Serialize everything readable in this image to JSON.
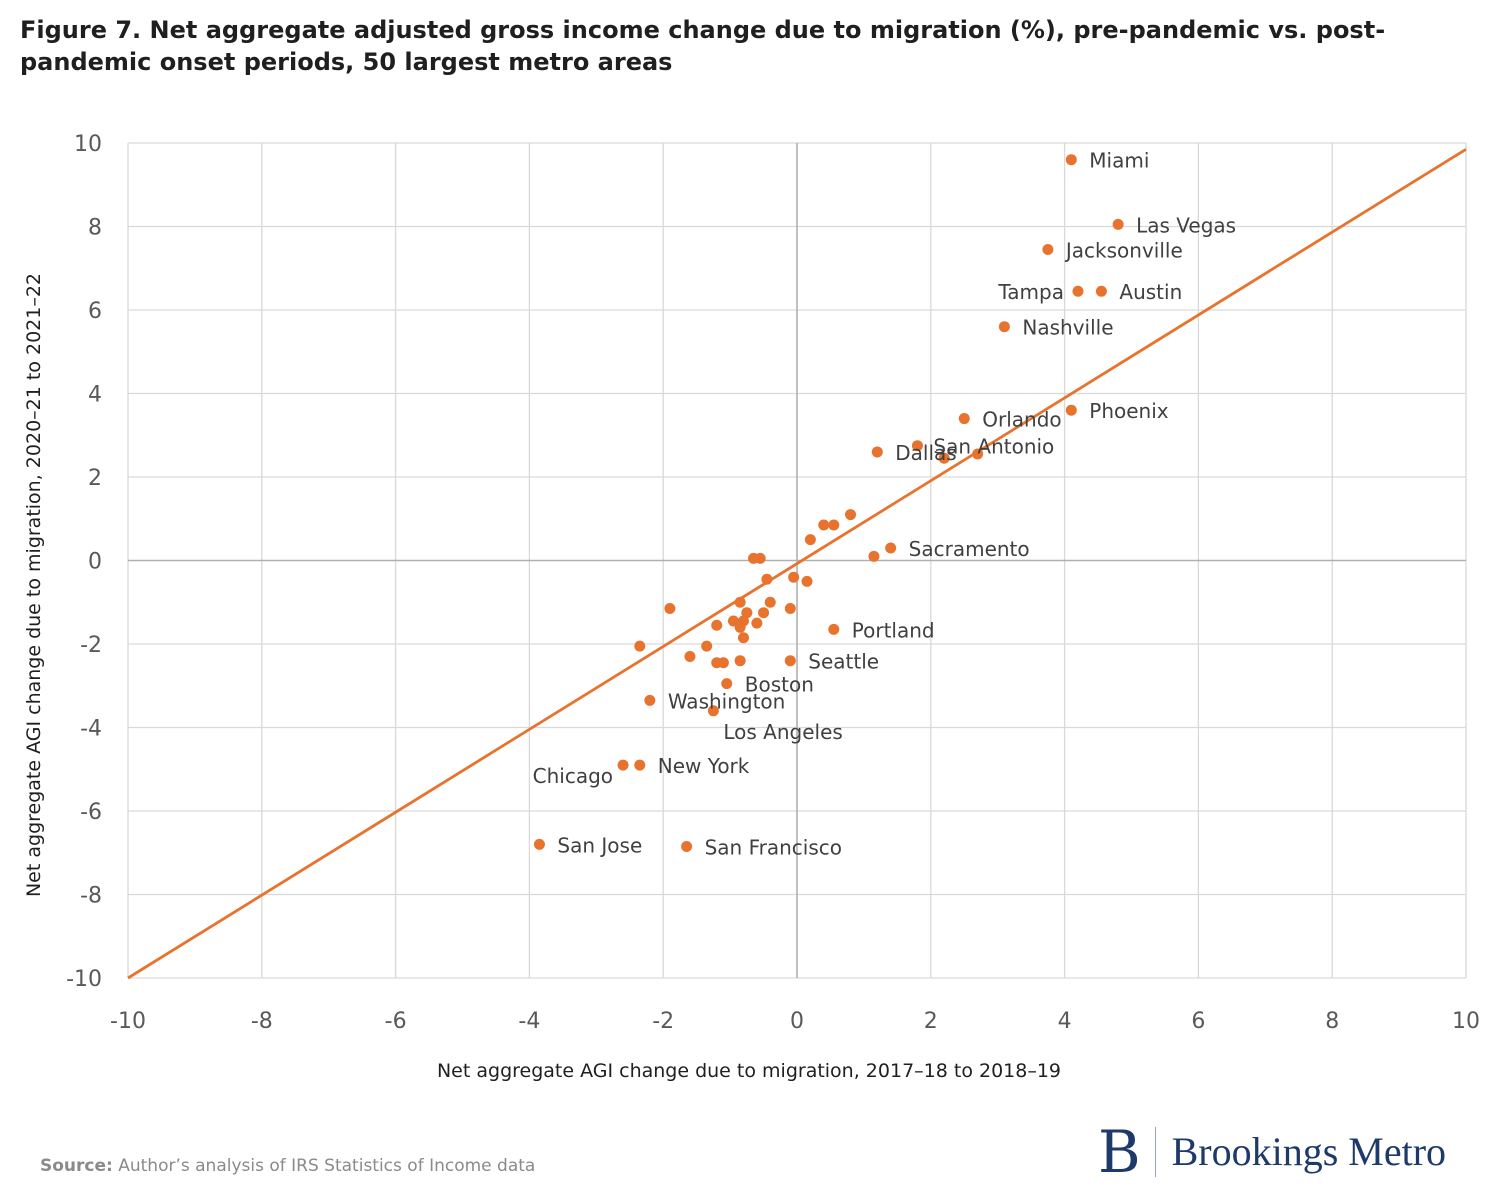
{
  "title": "Figure 7. Net aggregate adjusted gross income change due to migration (%), pre-pandemic vs. post-pandemic onset periods, 50 largest metro areas",
  "source": {
    "label": "Source:",
    "text": "Author’s analysis of IRS Statistics of Income data"
  },
  "logo": {
    "mark": "B",
    "text": "Brookings Metro"
  },
  "colors": {
    "accent": "#E8732E",
    "grid": "#d9d9d9",
    "axis_text": "#595959",
    "label_text": "#404040"
  },
  "chart_data": {
    "type": "scatter",
    "xlabel": "Net aggregate AGI change due to migration, 2017–18 to 2018–19",
    "ylabel": "Net aggregate AGI change due to migration, 2020–21 to 2021–22",
    "xlim": [
      -10,
      10
    ],
    "ylim": [
      -10,
      10
    ],
    "xticks": [
      -10,
      -8,
      -6,
      -4,
      -2,
      0,
      2,
      4,
      6,
      8,
      10
    ],
    "yticks": [
      -10,
      -8,
      -6,
      -4,
      -2,
      0,
      2,
      4,
      6,
      8,
      10
    ],
    "grid": true,
    "reference_line": {
      "from": [
        -10,
        -10
      ],
      "to": [
        10,
        9.85
      ]
    },
    "labeled_points": [
      {
        "name": "Miami",
        "x": 4.1,
        "y": 9.6
      },
      {
        "name": "Las Vegas",
        "x": 4.8,
        "y": 8.05
      },
      {
        "name": "Jacksonville",
        "x": 3.75,
        "y": 7.45
      },
      {
        "name": "Tampa",
        "x": 4.2,
        "y": 6.45
      },
      {
        "name": "Austin",
        "x": 4.55,
        "y": 6.45
      },
      {
        "name": "Nashville",
        "x": 3.1,
        "y": 5.6
      },
      {
        "name": "Phoenix",
        "x": 4.1,
        "y": 3.6
      },
      {
        "name": "Orlando",
        "x": 2.5,
        "y": 3.4
      },
      {
        "name": "San Antonio",
        "x": 1.8,
        "y": 2.75
      },
      {
        "name": "Dallas",
        "x": 1.2,
        "y": 2.6
      },
      {
        "name": "Sacramento",
        "x": 1.4,
        "y": 0.3
      },
      {
        "name": "Portland",
        "x": 0.55,
        "y": -1.65
      },
      {
        "name": "Seattle",
        "x": -0.1,
        "y": -2.4
      },
      {
        "name": "Boston",
        "x": -1.05,
        "y": -2.95
      },
      {
        "name": "Washington",
        "x": -2.2,
        "y": -3.35
      },
      {
        "name": "Los Angeles",
        "x": -1.25,
        "y": -3.6
      },
      {
        "name": "New York",
        "x": -2.35,
        "y": -4.9
      },
      {
        "name": "Chicago",
        "x": -2.6,
        "y": -4.9
      },
      {
        "name": "San Jose",
        "x": -3.85,
        "y": -6.8
      },
      {
        "name": "San Francisco",
        "x": -1.65,
        "y": -6.85
      }
    ],
    "other_points": [
      {
        "x": 2.2,
        "y": 2.45
      },
      {
        "x": 2.7,
        "y": 2.55
      },
      {
        "x": 0.8,
        "y": 1.1
      },
      {
        "x": 0.4,
        "y": 0.85
      },
      {
        "x": 0.55,
        "y": 0.85
      },
      {
        "x": 0.2,
        "y": 0.5
      },
      {
        "x": 1.15,
        "y": 0.1
      },
      {
        "x": -0.65,
        "y": 0.05
      },
      {
        "x": -0.55,
        "y": 0.05
      },
      {
        "x": -0.45,
        "y": -0.45
      },
      {
        "x": -0.05,
        "y": -0.4
      },
      {
        "x": 0.15,
        "y": -0.5
      },
      {
        "x": -1.9,
        "y": -1.15
      },
      {
        "x": -0.85,
        "y": -1.0
      },
      {
        "x": -0.4,
        "y": -1.0
      },
      {
        "x": -0.75,
        "y": -1.25
      },
      {
        "x": -0.5,
        "y": -1.25
      },
      {
        "x": -0.1,
        "y": -1.15
      },
      {
        "x": -0.95,
        "y": -1.45
      },
      {
        "x": -0.8,
        "y": -1.45
      },
      {
        "x": -1.2,
        "y": -1.55
      },
      {
        "x": -0.85,
        "y": -1.6
      },
      {
        "x": -0.6,
        "y": -1.5
      },
      {
        "x": -0.8,
        "y": -1.85
      },
      {
        "x": -2.35,
        "y": -2.05
      },
      {
        "x": -1.35,
        "y": -2.05
      },
      {
        "x": -1.6,
        "y": -2.3
      },
      {
        "x": -1.2,
        "y": -2.45
      },
      {
        "x": -1.1,
        "y": -2.45
      },
      {
        "x": -0.85,
        "y": -2.4
      }
    ]
  }
}
